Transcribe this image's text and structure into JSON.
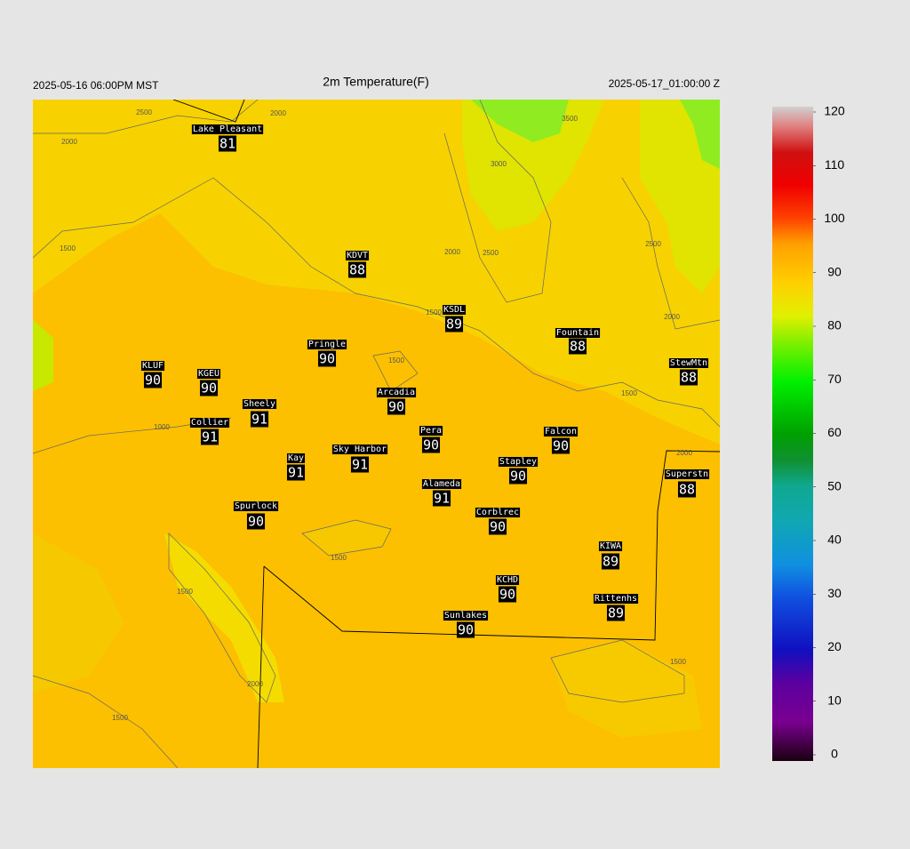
{
  "header": {
    "left": "2025-05-16 06:00PM MST",
    "title": "2m Temperature(F)",
    "right": "2025-05-17_01:00:00 Z"
  },
  "stations": [
    {
      "name": "Lake Pleasant",
      "value": 81
    },
    {
      "name": "KDVT",
      "value": 88
    },
    {
      "name": "KSDL",
      "value": 89
    },
    {
      "name": "Fountain",
      "value": 88
    },
    {
      "name": "Pringle",
      "value": 90
    },
    {
      "name": "KLUF",
      "value": 90
    },
    {
      "name": "KGEU",
      "value": 90
    },
    {
      "name": "StewMtn",
      "value": 88
    },
    {
      "name": "Arcadia",
      "value": 90
    },
    {
      "name": "Sheely",
      "value": 91
    },
    {
      "name": "Collier",
      "value": 91
    },
    {
      "name": "Pera",
      "value": 90
    },
    {
      "name": "Falcon",
      "value": 90
    },
    {
      "name": "Kay",
      "value": 91
    },
    {
      "name": "Sky Harbor",
      "value": 91
    },
    {
      "name": "Stapley",
      "value": 90
    },
    {
      "name": "Superstn",
      "value": 88
    },
    {
      "name": "Alameda",
      "value": 91
    },
    {
      "name": "Spurlock",
      "value": 90
    },
    {
      "name": "Corblrec",
      "value": 90
    },
    {
      "name": "KIWA",
      "value": 89
    },
    {
      "name": "KCHD",
      "value": 90
    },
    {
      "name": "Rittenhs",
      "value": 89
    },
    {
      "name": "Sunlakes",
      "value": 90
    }
  ],
  "contour_labels": [
    2500,
    2000,
    2000,
    3500,
    3000,
    1500,
    2000,
    2500,
    2500,
    2000,
    1500,
    1500,
    1500,
    1000,
    2000,
    1500,
    1500,
    2000,
    1500,
    1500
  ],
  "colorbar": {
    "lim": [
      0,
      120
    ],
    "ticks": [
      0,
      10,
      20,
      30,
      40,
      50,
      60,
      70,
      80,
      90,
      100,
      110,
      120
    ]
  }
}
